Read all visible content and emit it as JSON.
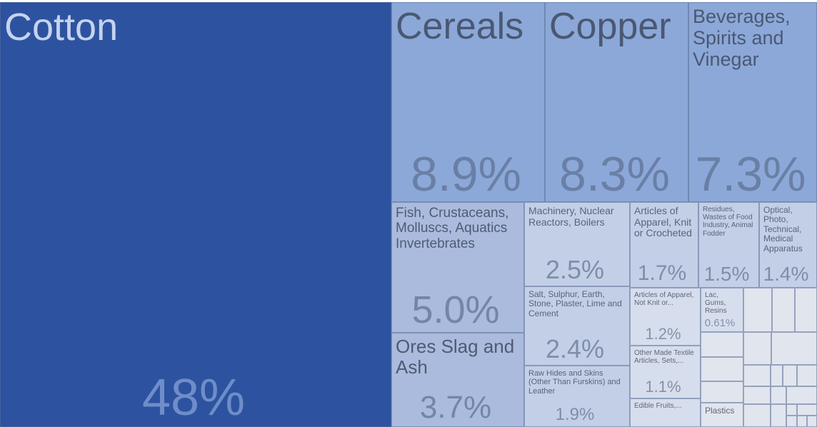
{
  "chart_data": {
    "type": "treemap",
    "tiles": [
      {
        "label": "Cotton",
        "value": "48%"
      },
      {
        "label": "Cereals",
        "value": "8.9%"
      },
      {
        "label": "Copper",
        "value": "8.3%"
      },
      {
        "label": "Beverages, Spirits and Vinegar",
        "value": "7.3%"
      },
      {
        "label": "Fish, Crustaceans, Molluscs, Aquatics Invertebrates",
        "value": "5.0%"
      },
      {
        "label": "Ores Slag and Ash",
        "value": "3.7%"
      },
      {
        "label": "Machinery, Nuclear Reactors, Boilers",
        "value": "2.5%"
      },
      {
        "label": "Salt, Sulphur, Earth, Stone, Plaster, Lime and Cement",
        "value": "2.4%"
      },
      {
        "label": "Raw Hides and Skins (Other Than Furskins) and Leather",
        "value": "1.9%"
      },
      {
        "label": "Articles of Apparel, Knit or Crocheted",
        "value": "1.7%"
      },
      {
        "label": "Residues, Wastes of Food Industry, Animal Fodder",
        "value": "1.5%"
      },
      {
        "label": "Optical, Photo, Technical, Medical Apparatus",
        "value": "1.4%"
      },
      {
        "label": "Articles of Apparel, Not Knit or...",
        "value": "1.2%"
      },
      {
        "label": "Other Made Textile Articles, Sets,...",
        "value": "1.1%"
      },
      {
        "label": "Edible Fruits,...",
        "value": ""
      },
      {
        "label": "Lac, Gums, Resins",
        "value": "0.61%"
      },
      {
        "label": "Plastics",
        "value": ""
      }
    ],
    "colors": {
      "dark": "#2d53a0",
      "mid": "#8ca8d8",
      "light": "#aabbdd",
      "pale": "#c3cfe6",
      "faint": "#d6dded",
      "tiny": "#e1e5ee"
    }
  }
}
